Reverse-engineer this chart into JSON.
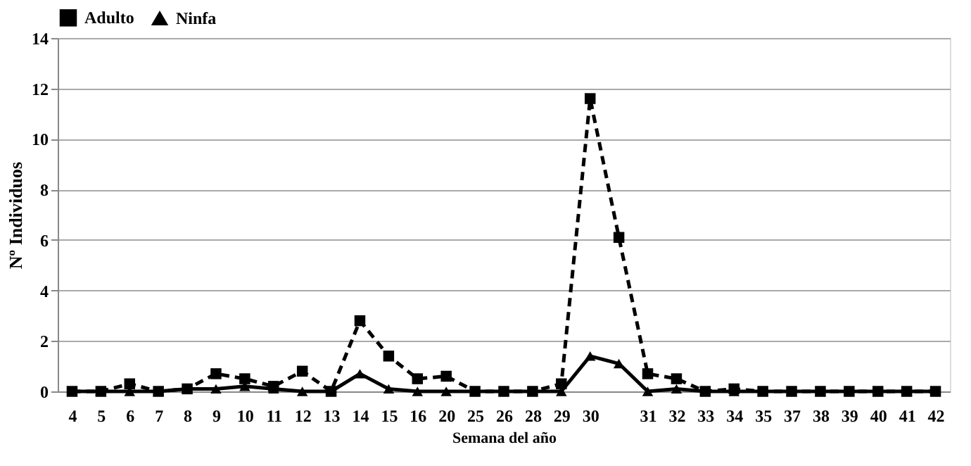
{
  "chart_data": {
    "type": "line",
    "xlabel": "Semana del año",
    "ylabel": "Nº Individuos",
    "categories": [
      "4",
      "5",
      "6",
      "7",
      "8",
      "9",
      "10",
      "11",
      "12",
      "13",
      "14",
      "15",
      "16",
      "20",
      "25",
      "26",
      "28",
      "29",
      "30",
      null,
      "31",
      "32",
      "33",
      "34",
      "35",
      "37",
      "38",
      "39",
      "40",
      "41",
      "42"
    ],
    "series": [
      {
        "name": "Adulto",
        "color": "#000000",
        "line_style": "dashed",
        "marker": "square",
        "values": [
          0,
          0,
          0.3,
          0,
          0.1,
          0.7,
          0.5,
          0.2,
          0.8,
          0,
          2.8,
          1.4,
          0.5,
          0.6,
          0,
          0,
          0,
          0.3,
          11.6,
          6.1,
          0.7,
          0.5,
          0,
          0.1,
          0,
          0,
          0,
          0,
          0,
          0,
          0
        ]
      },
      {
        "name": "Ninfa",
        "color": "#000000",
        "line_style": "solid",
        "marker": "triangle",
        "values": [
          0,
          0,
          0,
          0,
          0.1,
          0.1,
          0.2,
          0.1,
          0,
          0,
          0.7,
          0.1,
          0,
          0,
          0,
          0,
          0,
          0,
          1.4,
          1.1,
          0,
          0.1,
          0,
          0,
          0,
          0,
          0,
          0,
          0,
          0,
          0
        ]
      }
    ],
    "ylim": [
      0,
      14
    ],
    "yticks": [
      0,
      2,
      4,
      6,
      8,
      10,
      12,
      14
    ],
    "grid": "y",
    "legend": "top"
  }
}
